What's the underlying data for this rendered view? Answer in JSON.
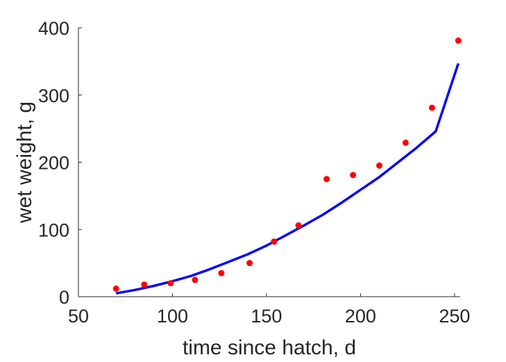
{
  "chart_data": {
    "type": "scatter",
    "title": "",
    "xlabel": "time since hatch, d",
    "ylabel": "wet weight, g",
    "xlim": [
      50,
      253
    ],
    "ylim": [
      0,
      400
    ],
    "xticks": [
      50,
      100,
      150,
      200,
      250
    ],
    "yticks": [
      0,
      100,
      200,
      300,
      400
    ],
    "grid": false,
    "legend": "none",
    "series": [
      {
        "kind": "points",
        "color": "#ff0000",
        "x": [
          70,
          85,
          99,
          112,
          126,
          141,
          154,
          167,
          182,
          196,
          210,
          224,
          238,
          252
        ],
        "y": [
          12,
          18,
          20,
          25,
          35,
          50,
          82,
          106,
          175,
          181,
          195,
          229,
          281,
          381
        ]
      },
      {
        "kind": "line",
        "color": "#0000ff",
        "x": [
          70,
          80,
          90,
          100,
          110,
          120,
          130,
          140,
          150,
          160,
          170,
          180,
          190,
          200,
          210,
          220,
          230,
          240,
          252
        ],
        "y": [
          5,
          10,
          16,
          23,
          31,
          41,
          52,
          63,
          76,
          91,
          106,
          122,
          140,
          159,
          178,
          200,
          222,
          246,
          347
        ]
      }
    ]
  }
}
